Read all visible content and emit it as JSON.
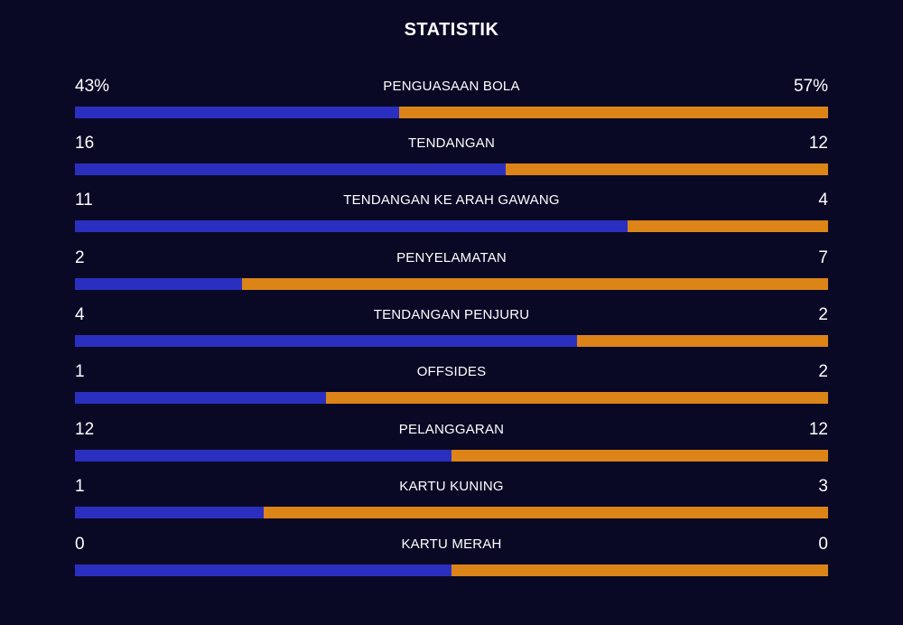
{
  "title": "STATISTIK",
  "colors": {
    "background": "#090926",
    "left_team": "#2b2fbf",
    "right_team": "#dc8418",
    "text": "#ffffff"
  },
  "stats": [
    {
      "label": "PENGUASAAN BOLA",
      "left": "43%",
      "right": "57%",
      "left_share": 0.43
    },
    {
      "label": "TENDANGAN",
      "left": "16",
      "right": "12",
      "left_share": 0.5714
    },
    {
      "label": "TENDANGAN KE ARAH GAWANG",
      "left": "11",
      "right": "4",
      "left_share": 0.7333
    },
    {
      "label": "PENYELAMATAN",
      "left": "2",
      "right": "7",
      "left_share": 0.2222
    },
    {
      "label": "TENDANGAN PENJURU",
      "left": "4",
      "right": "2",
      "left_share": 0.6667
    },
    {
      "label": "OFFSIDES",
      "left": "1",
      "right": "2",
      "left_share": 0.3333
    },
    {
      "label": "PELANGGARAN",
      "left": "12",
      "right": "12",
      "left_share": 0.5
    },
    {
      "label": "KARTU KUNING",
      "left": "1",
      "right": "3",
      "left_share": 0.25
    },
    {
      "label": "KARTU MERAH",
      "left": "0",
      "right": "0",
      "left_share": 0.5
    }
  ]
}
